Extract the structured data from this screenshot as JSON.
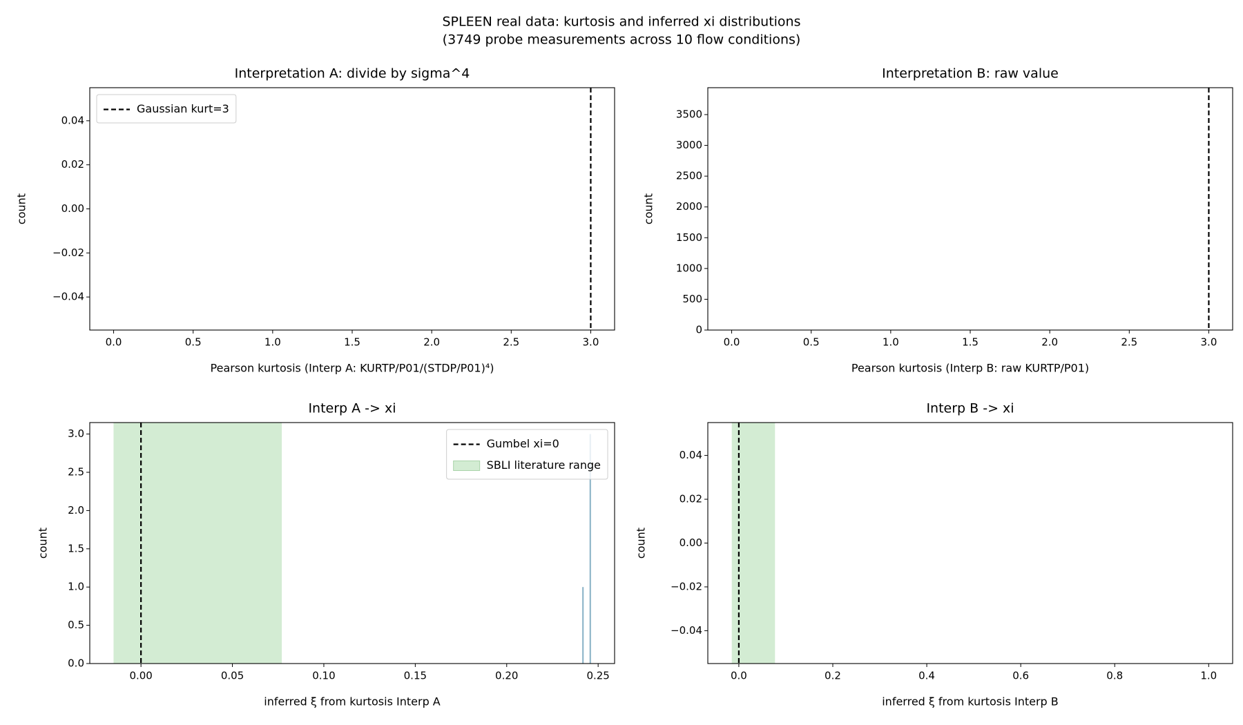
{
  "title": "SPLEEN real data: kurtosis and inferred xi distributions",
  "subtitle": "(3749 probe measurements across 10 flow conditions)",
  "chart_data": [
    {
      "type": "histogram",
      "title": "Interpretation A: divide by sigma^4",
      "xlabel": "Pearson kurtosis (Interp A: KURTP/P01/(STDP/P01)⁴)",
      "ylabel": "count",
      "xlim": [
        -0.15,
        3.15
      ],
      "ylim": [
        -0.055,
        0.055
      ],
      "xticks": [
        {
          "value": 0,
          "label": "0.0"
        },
        {
          "value": 0.5,
          "label": "0.5"
        },
        {
          "value": 1,
          "label": "1.0"
        },
        {
          "value": 1.5,
          "label": "1.5"
        },
        {
          "value": 2,
          "label": "2.0"
        },
        {
          "value": 2.5,
          "label": "2.5"
        },
        {
          "value": 3,
          "label": "3.0"
        }
      ],
      "yticks": [
        {
          "value": -0.04,
          "label": "−0.04"
        },
        {
          "value": -0.02,
          "label": "−0.02"
        },
        {
          "value": 0,
          "label": "0.00"
        },
        {
          "value": 0.02,
          "label": "0.02"
        },
        {
          "value": 0.04,
          "label": "0.04"
        }
      ],
      "vlines": [
        {
          "x": 3,
          "label": "Gaussian kurt=3",
          "color": "#000000"
        }
      ],
      "legend": "upper left"
    },
    {
      "type": "histogram",
      "title": "Interpretation B: raw value",
      "xlabel": "Pearson kurtosis (Interp B: raw KURTP/P01)",
      "ylabel": "count",
      "xlim": [
        -0.15,
        3.15
      ],
      "ylim": [
        0,
        3937
      ],
      "xticks": [
        {
          "value": 0,
          "label": "0.0"
        },
        {
          "value": 0.5,
          "label": "0.5"
        },
        {
          "value": 1,
          "label": "1.0"
        },
        {
          "value": 1.5,
          "label": "1.5"
        },
        {
          "value": 2,
          "label": "2.0"
        },
        {
          "value": 2.5,
          "label": "2.5"
        },
        {
          "value": 3,
          "label": "3.0"
        }
      ],
      "yticks": [
        0,
        500,
        1000,
        1500,
        2000,
        2500,
        3000,
        3500
      ],
      "vlines": [
        {
          "x": 3,
          "color": "#000000"
        }
      ]
    },
    {
      "type": "histogram",
      "title": "Interp A -> xi",
      "xlabel": "inferred ξ from kurtosis Interp A",
      "ylabel": "count",
      "xlim": [
        -0.028,
        0.259
      ],
      "ylim": [
        0,
        3.15
      ],
      "xticks": [
        {
          "value": 0,
          "label": "0.00"
        },
        {
          "value": 0.05,
          "label": "0.05"
        },
        {
          "value": 0.1,
          "label": "0.10"
        },
        {
          "value": 0.15,
          "label": "0.15"
        },
        {
          "value": 0.2,
          "label": "0.20"
        },
        {
          "value": 0.25,
          "label": "0.25"
        }
      ],
      "yticks": [
        {
          "value": 0,
          "label": "0.0"
        },
        {
          "value": 0.5,
          "label": "0.5"
        },
        {
          "value": 1,
          "label": "1.0"
        },
        {
          "value": 1.5,
          "label": "1.5"
        },
        {
          "value": 2,
          "label": "2.0"
        },
        {
          "value": 2.5,
          "label": "2.5"
        },
        {
          "value": 3,
          "label": "3.0"
        }
      ],
      "bins": [
        0.2413,
        0.2421,
        0.2429,
        0.2437,
        0.2445,
        0.2453,
        0.2461
      ],
      "counts": [
        1,
        0,
        0,
        0,
        0,
        3
      ],
      "color": "#8db4c8",
      "vlines": [
        {
          "x": 0,
          "label": "Gumbel xi=0",
          "color": "#000000"
        }
      ],
      "spans": [
        {
          "x": [
            -0.015,
            0.077
          ],
          "label": "SBLI literature range",
          "color": "#d3ecd3"
        }
      ],
      "legend": "upper right"
    },
    {
      "type": "histogram",
      "title": "Interp B -> xi",
      "xlabel": "inferred ξ from kurtosis Interp B",
      "ylabel": "count",
      "xlim": [
        -0.066,
        1.051
      ],
      "ylim": [
        -0.055,
        0.055
      ],
      "xticks": [
        {
          "value": 0,
          "label": "0.0"
        },
        {
          "value": 0.2,
          "label": "0.2"
        },
        {
          "value": 0.4,
          "label": "0.4"
        },
        {
          "value": 0.6,
          "label": "0.6"
        },
        {
          "value": 0.8,
          "label": "0.8"
        },
        {
          "value": 1,
          "label": "1.0"
        }
      ],
      "yticks": [
        {
          "value": -0.04,
          "label": "−0.04"
        },
        {
          "value": -0.02,
          "label": "−0.02"
        },
        {
          "value": 0,
          "label": "0.00"
        },
        {
          "value": 0.02,
          "label": "0.02"
        },
        {
          "value": 0.04,
          "label": "0.04"
        }
      ],
      "vlines": [
        {
          "x": 0,
          "color": "#000000"
        }
      ],
      "spans": [
        {
          "x": [
            -0.015,
            0.077
          ],
          "color": "#d3ecd3"
        }
      ]
    }
  ]
}
